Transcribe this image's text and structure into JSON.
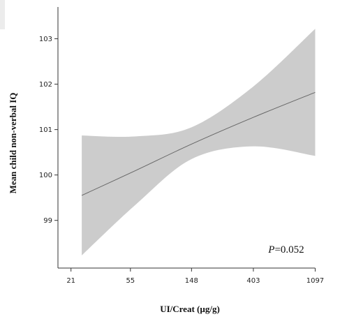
{
  "chart_data": {
    "type": "line",
    "xlabel": "UI/Creat (µg/g)",
    "ylabel": "Mean child non-verbal IQ",
    "x_scale": "log",
    "x_ticks": [
      21,
      55,
      148,
      403,
      1097
    ],
    "x_tick_labels": [
      "21",
      "55",
      "148",
      "403",
      "1097"
    ],
    "y_ticks": [
      99,
      100,
      101,
      102,
      103
    ],
    "y_tick_labels": [
      "99",
      "100",
      "101",
      "102",
      "103"
    ],
    "xlim": [
      17,
      1250
    ],
    "ylim": [
      97.95,
      103.7
    ],
    "series": [
      {
        "x": [
          25,
          60,
          148,
          403,
          1097
        ],
        "y": [
          99.55,
          100.1,
          100.68,
          101.27,
          101.82
        ],
        "lower": [
          98.23,
          99.35,
          100.35,
          100.63,
          100.42
        ],
        "upper": [
          100.87,
          100.85,
          101.05,
          101.95,
          103.22
        ]
      }
    ],
    "annotation": {
      "prefix": "P",
      "text": "=0.052"
    },
    "grid": false,
    "colors": {
      "band": "#cccccc",
      "line": "#666666",
      "axis": "#333333"
    }
  }
}
